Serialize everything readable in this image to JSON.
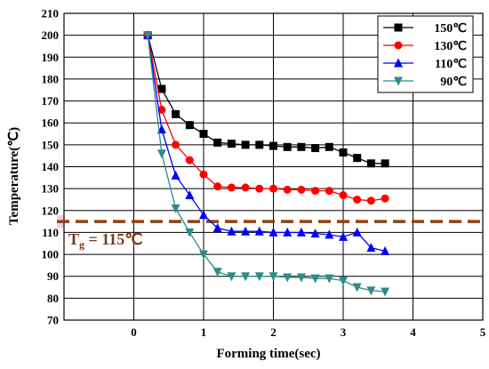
{
  "chart_data": {
    "type": "line",
    "title": "",
    "xlabel": "Forming time(sec)",
    "ylabel": "Temperature(℃)",
    "xlim": [
      -1,
      5
    ],
    "ylim": [
      70,
      210
    ],
    "xticks": [
      0,
      1,
      2,
      3,
      4,
      5
    ],
    "yticks": [
      70,
      80,
      90,
      100,
      110,
      120,
      130,
      140,
      150,
      160,
      170,
      180,
      190,
      200,
      210
    ],
    "grid": true,
    "legend_position": "top-right",
    "series": [
      {
        "name": "150℃",
        "color": "#000000",
        "marker": "square",
        "x": [
          0.2,
          0.4,
          0.6,
          0.8,
          1.0,
          1.2,
          1.4,
          1.6,
          1.8,
          2.0,
          2.2,
          2.4,
          2.6,
          2.8,
          3.0,
          3.2,
          3.4,
          3.6
        ],
        "y": [
          200,
          175.5,
          164,
          159,
          155,
          151,
          150.5,
          150,
          150,
          149.5,
          149,
          149,
          148.5,
          149,
          146.5,
          144,
          141.5,
          141.5
        ]
      },
      {
        "name": "130℃",
        "color": "#ff0000",
        "marker": "circle",
        "x": [
          0.2,
          0.4,
          0.6,
          0.8,
          1.0,
          1.2,
          1.4,
          1.6,
          1.8,
          2.0,
          2.2,
          2.4,
          2.6,
          2.8,
          3.0,
          3.2,
          3.4,
          3.6
        ],
        "y": [
          200,
          166,
          150,
          143,
          136.5,
          131,
          130.5,
          130.5,
          130,
          130,
          129.5,
          129.5,
          129,
          129,
          127,
          125,
          124.5,
          125.5
        ]
      },
      {
        "name": "110℃",
        "color": "#0000ff",
        "marker": "triangle-up",
        "x": [
          0.2,
          0.4,
          0.6,
          0.8,
          1.0,
          1.2,
          1.4,
          1.6,
          1.8,
          2.0,
          2.2,
          2.4,
          2.6,
          2.8,
          3.0,
          3.2,
          3.4,
          3.6
        ],
        "y": [
          200,
          157,
          136,
          127,
          118,
          112,
          110.5,
          110.5,
          110.5,
          110,
          110,
          110,
          109.5,
          109,
          108,
          110,
          103,
          101.5
        ]
      },
      {
        "name": "90℃",
        "color": "#2e8b8b",
        "marker": "triangle-down",
        "x": [
          0.2,
          0.4,
          0.6,
          0.8,
          1.0,
          1.2,
          1.4,
          1.6,
          1.8,
          2.0,
          2.2,
          2.4,
          2.6,
          2.8,
          3.0,
          3.2,
          3.4,
          3.6
        ],
        "y": [
          200,
          146,
          121,
          110,
          100,
          92,
          90,
          90,
          90,
          90,
          89.5,
          89.5,
          89,
          89,
          88,
          85,
          83.5,
          83
        ]
      }
    ],
    "reference_line": {
      "y": 115,
      "label_main": "T",
      "label_sub": "g",
      "label_rest": " = 115℃",
      "color": "#8b4513",
      "style": "dashed"
    }
  }
}
